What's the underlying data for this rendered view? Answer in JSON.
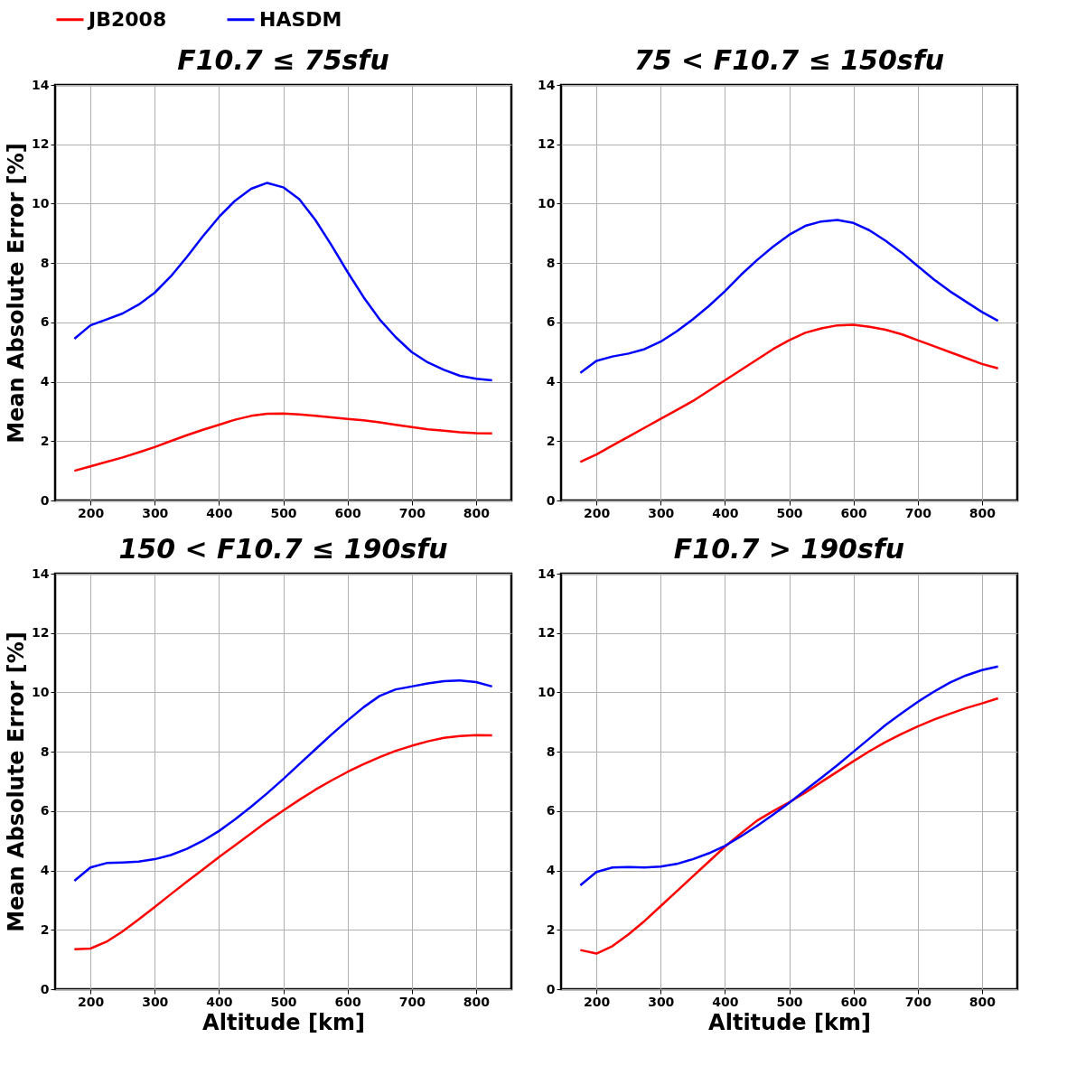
{
  "chart_data": [
    {
      "type": "line",
      "title": "F10.7 ≤ 75sfu",
      "ylabel": "Mean Absolute Error [%]",
      "x": [
        175,
        200,
        225,
        250,
        275,
        300,
        325,
        350,
        375,
        400,
        425,
        450,
        475,
        500,
        525,
        550,
        575,
        600,
        625,
        650,
        675,
        700,
        725,
        750,
        775,
        800,
        825
      ],
      "xlim": [
        145,
        855
      ],
      "xticks": [
        200,
        300,
        400,
        500,
        600,
        700,
        800
      ],
      "ylim": [
        0,
        14
      ],
      "yticks": [
        0,
        2,
        4,
        6,
        8,
        10,
        12,
        14
      ],
      "grid": true,
      "legend": "top",
      "line_style": "solid",
      "marker": "none",
      "series": [
        {
          "name": "JB2008",
          "color": "#ff0000",
          "values": [
            1.0,
            1.15,
            1.3,
            1.45,
            1.62,
            1.8,
            2.0,
            2.2,
            2.38,
            2.55,
            2.72,
            2.85,
            2.92,
            2.93,
            2.9,
            2.85,
            2.8,
            2.75,
            2.7,
            2.63,
            2.55,
            2.47,
            2.4,
            2.35,
            2.3,
            2.27,
            2.26
          ]
        },
        {
          "name": "HASDM",
          "color": "#0000ff",
          "values": [
            5.45,
            5.9,
            6.1,
            6.3,
            6.6,
            7.0,
            7.55,
            8.2,
            8.9,
            9.55,
            10.1,
            10.5,
            10.7,
            10.55,
            10.15,
            9.45,
            8.6,
            7.7,
            6.85,
            6.1,
            5.5,
            5.0,
            4.65,
            4.4,
            4.2,
            4.1,
            4.05
          ]
        }
      ]
    },
    {
      "type": "line",
      "title": "75 < F10.7 ≤ 150sfu",
      "x": [
        175,
        200,
        225,
        250,
        275,
        300,
        325,
        350,
        375,
        400,
        425,
        450,
        475,
        500,
        525,
        550,
        575,
        600,
        625,
        650,
        675,
        700,
        725,
        750,
        775,
        800,
        825
      ],
      "xlim": [
        145,
        855
      ],
      "xticks": [
        200,
        300,
        400,
        500,
        600,
        700,
        800
      ],
      "ylim": [
        0,
        14
      ],
      "yticks": [
        0,
        2,
        4,
        6,
        8,
        10,
        12,
        14
      ],
      "grid": true,
      "legend": "top",
      "line_style": "solid",
      "marker": "none",
      "series": [
        {
          "name": "JB2008",
          "color": "#ff0000",
          "values": [
            1.3,
            1.55,
            1.85,
            2.15,
            2.45,
            2.75,
            3.05,
            3.35,
            3.7,
            4.05,
            4.4,
            4.75,
            5.1,
            5.4,
            5.65,
            5.8,
            5.9,
            5.92,
            5.85,
            5.75,
            5.6,
            5.4,
            5.2,
            5.0,
            4.8,
            4.6,
            4.45
          ]
        },
        {
          "name": "HASDM",
          "color": "#0000ff",
          "values": [
            4.3,
            4.7,
            4.85,
            4.95,
            5.1,
            5.35,
            5.7,
            6.1,
            6.55,
            7.05,
            7.6,
            8.1,
            8.55,
            8.95,
            9.25,
            9.4,
            9.45,
            9.35,
            9.1,
            8.75,
            8.35,
            7.9,
            7.45,
            7.05,
            6.7,
            6.35,
            6.05
          ]
        }
      ]
    },
    {
      "type": "line",
      "title": "150 < F10.7 ≤ 190sfu",
      "xlabel": "Altitude [km]",
      "ylabel": "Mean Absolute Error [%]",
      "x": [
        175,
        200,
        225,
        250,
        275,
        300,
        325,
        350,
        375,
        400,
        425,
        450,
        475,
        500,
        525,
        550,
        575,
        600,
        625,
        650,
        675,
        700,
        725,
        750,
        775,
        800,
        825
      ],
      "xlim": [
        145,
        855
      ],
      "xticks": [
        200,
        300,
        400,
        500,
        600,
        700,
        800
      ],
      "ylim": [
        0,
        14
      ],
      "yticks": [
        0,
        2,
        4,
        6,
        8,
        10,
        12,
        14
      ],
      "grid": true,
      "legend": "top",
      "line_style": "solid",
      "marker": "none",
      "series": [
        {
          "name": "JB2008",
          "color": "#ff0000",
          "values": [
            1.35,
            1.37,
            1.6,
            1.95,
            2.35,
            2.77,
            3.2,
            3.62,
            4.03,
            4.45,
            4.85,
            5.25,
            5.65,
            6.02,
            6.38,
            6.72,
            7.03,
            7.32,
            7.58,
            7.82,
            8.03,
            8.2,
            8.35,
            8.47,
            8.53,
            8.56,
            8.55
          ]
        },
        {
          "name": "HASDM",
          "color": "#0000ff",
          "values": [
            3.65,
            4.1,
            4.25,
            4.27,
            4.3,
            4.38,
            4.52,
            4.73,
            5.0,
            5.33,
            5.72,
            6.15,
            6.6,
            7.08,
            7.58,
            8.08,
            8.58,
            9.05,
            9.5,
            9.88,
            10.1,
            10.2,
            10.3,
            10.38,
            10.4,
            10.35,
            10.2
          ]
        }
      ]
    },
    {
      "type": "line",
      "title": "F10.7 > 190sfu",
      "xlabel": "Altitude [km]",
      "x": [
        175,
        200,
        225,
        250,
        275,
        300,
        325,
        350,
        375,
        400,
        425,
        450,
        475,
        500,
        525,
        550,
        575,
        600,
        625,
        650,
        675,
        700,
        725,
        750,
        775,
        800,
        825
      ],
      "xlim": [
        145,
        855
      ],
      "xticks": [
        200,
        300,
        400,
        500,
        600,
        700,
        800
      ],
      "ylim": [
        0,
        14
      ],
      "yticks": [
        0,
        2,
        4,
        6,
        8,
        10,
        12,
        14
      ],
      "grid": true,
      "legend": "top",
      "line_style": "solid",
      "marker": "none",
      "series": [
        {
          "name": "JB2008",
          "color": "#ff0000",
          "values": [
            1.32,
            1.2,
            1.45,
            1.85,
            2.3,
            2.8,
            3.3,
            3.8,
            4.3,
            4.8,
            5.25,
            5.68,
            6.0,
            6.3,
            6.62,
            6.98,
            7.33,
            7.68,
            8.02,
            8.33,
            8.6,
            8.85,
            9.08,
            9.28,
            9.47,
            9.63,
            9.8
          ]
        },
        {
          "name": "HASDM",
          "color": "#0000ff",
          "values": [
            3.5,
            3.95,
            4.1,
            4.12,
            4.1,
            4.13,
            4.22,
            4.38,
            4.58,
            4.83,
            5.15,
            5.5,
            5.88,
            6.28,
            6.7,
            7.12,
            7.55,
            8.0,
            8.45,
            8.9,
            9.3,
            9.68,
            10.02,
            10.33,
            10.57,
            10.75,
            10.87
          ]
        }
      ]
    }
  ]
}
